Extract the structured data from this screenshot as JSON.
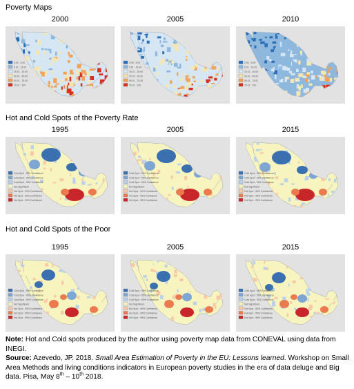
{
  "sections": [
    {
      "title": "Poverty Maps",
      "years": [
        "2000",
        "2005",
        "2010"
      ],
      "palette": "poverty",
      "legend": [
        "0.00 - 5.00",
        "5.01 - 15.00",
        "15.01 - 30.00",
        "30.01 - 50.00",
        "50.01 - 75.00",
        "75.01 - 100"
      ]
    },
    {
      "title": "Hot and Cold Spots of the Poverty Rate",
      "years": [
        "1995",
        "2005",
        "2015"
      ],
      "palette": "hotcold",
      "legend": [
        "Cold Spot - 99% Confidence",
        "Cold Spot - 95% Confidence",
        "Cold Spot - 90% Confidence",
        "Not Significant",
        "Hot Spot - 90% Confidence",
        "Hot Spot - 95% Confidence",
        "Hot Spot - 99% Confidence"
      ]
    },
    {
      "title": "Hot and Cold Spots of the Poor",
      "years": [
        "1995",
        "2005",
        "2015"
      ],
      "palette": "hotcold",
      "legend": [
        "Cold Spot - 99% Confidence",
        "Cold Spot - 95% Confidence",
        "Cold Spot - 90% Confidence",
        "Not Significant",
        "Hot Spot - 90% Confidence",
        "Hot Spot - 95% Confidence",
        "Hot Spot - 99% Confidence"
      ]
    }
  ],
  "colors": {
    "map_background": "#e2e2e2",
    "poverty": [
      "#2b6fb8",
      "#8fb8de",
      "#d6e7f3",
      "#f6e7b0",
      "#f2a35a",
      "#d7301f"
    ],
    "hotcold": [
      "#3a6fb0",
      "#7ea6d3",
      "#b9d1ea",
      "#f7f4bf",
      "#f9c9a5",
      "#ec7a4f",
      "#c8262a"
    ]
  },
  "note": {
    "note_label": "Note:",
    "note_text": " Hot and Cold spots produced by the author using poverty map data from CONEVAL using data from INEGI.",
    "source_label": "Source:",
    "source_author": " Azevedo, JP. 2018.  ",
    "source_title": "Small Area Estimation of Poverty in the EU: Lessons learned",
    "source_rest": ". Workshop on Small Area Methods and living conditions indicators in European poverty studies in the era of data deluge and Big data. Pisa, May 8",
    "sup1": "th",
    "dash": " – 10",
    "sup2": "th",
    "end": " 2018."
  }
}
